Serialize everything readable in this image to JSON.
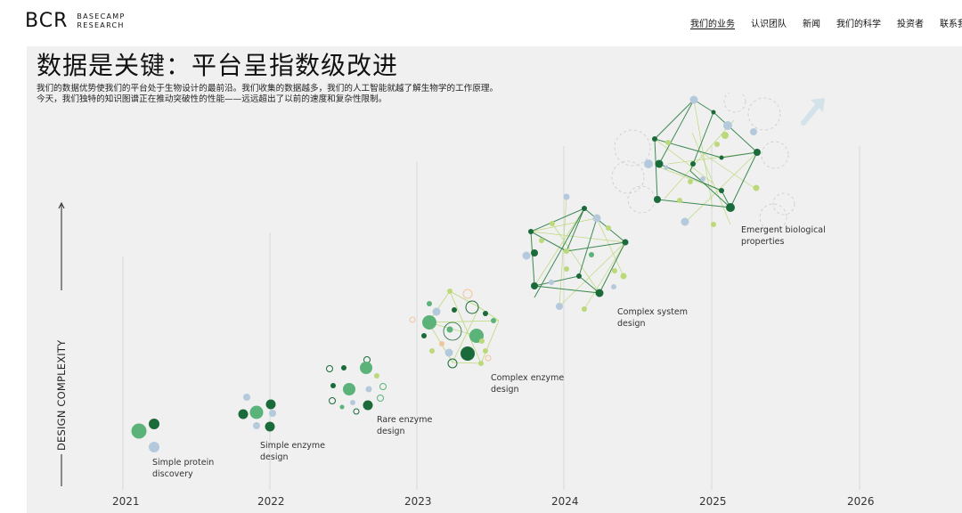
{
  "brand": {
    "mark": "BCR",
    "line1": "BASECAMP",
    "line2": "RESEARCH"
  },
  "nav": [
    {
      "label": "我们的业务",
      "active": true
    },
    {
      "label": "认识团队",
      "active": false
    },
    {
      "label": "新闻",
      "active": false
    },
    {
      "label": "我们的科学",
      "active": false
    },
    {
      "label": "投资者",
      "active": false
    },
    {
      "label": "联系我们",
      "active": false
    }
  ],
  "hero": {
    "title": "数据是关键：平台呈指数级改进",
    "description": "我们的数据优势使我们的平台处于生物设计的最前沿。我们收集的数据越多，我们的人工智能就越了解生物学的工作原理。今天，我们独特的知识图谱正在推动突破性的性能——远远超出了以前的速度和复杂性限制。"
  },
  "chart": {
    "ylabel": "DESIGN COMPLEXITY",
    "years": [
      "2021",
      "2022",
      "2023",
      "2024",
      "2025",
      "2026"
    ],
    "milestones": [
      {
        "line1": "Simple protein",
        "line2": "discovery"
      },
      {
        "line1": "Simple enzyme",
        "line2": "design"
      },
      {
        "line1": "Rare enzyme",
        "line2": "design"
      },
      {
        "line1": "Complex enzyme",
        "line2": "design"
      },
      {
        "line1": "Complex system",
        "line2": "design"
      },
      {
        "line1": "Emergent biological",
        "line2": "properties"
      }
    ]
  },
  "colors": {
    "dark_green": "#1b6b3a",
    "mid_green": "#5bb37a",
    "light_blue": "#b5c9dd",
    "lime": "#bcd97a",
    "orange_ring": "#f0c59a",
    "grid": "#d8d8d8",
    "background": "#f0f0f0"
  }
}
